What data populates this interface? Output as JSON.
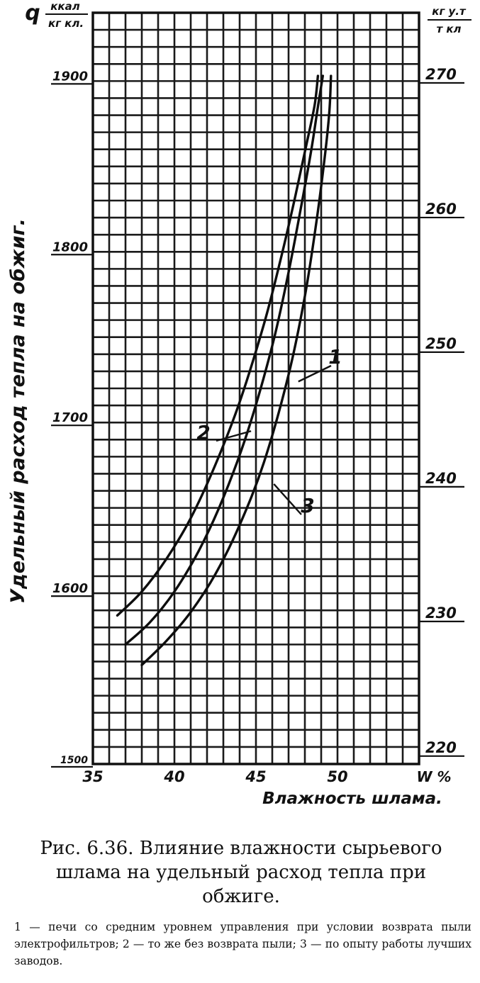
{
  "chart_data": {
    "type": "line",
    "ylabel": "Удельный расход тепла на обжиг.",
    "xlabel": "Влажность шлама.",
    "y_unit_left": {
      "symbol": "q",
      "numerator": "ккал",
      "denominator": "кг кл."
    },
    "y_unit_right": {
      "numerator": "кг у.т",
      "denominator": "т кл"
    },
    "x_unit": "W %",
    "xlim": [
      35,
      55
    ],
    "ylim_left": [
      1500,
      1940
    ],
    "ylim_right": [
      219.2,
      275.0
    ],
    "x_ticks": [
      35,
      40,
      45,
      50
    ],
    "y_ticks_left": [
      1500,
      1600,
      1700,
      1800,
      1900
    ],
    "y_ticks_right": [
      220,
      230,
      240,
      250,
      260,
      270
    ],
    "grid": true,
    "series": [
      {
        "name": "1",
        "x": [
          37.0,
          38.5,
          40.0,
          41.5,
          43.0,
          44.5,
          46.0,
          47.0,
          47.8,
          48.4,
          48.8,
          49.1
        ],
        "y": [
          1570,
          1583,
          1601,
          1625,
          1656,
          1695,
          1745,
          1788,
          1828,
          1860,
          1885,
          1903
        ]
      },
      {
        "name": "2",
        "x": [
          36.5,
          38.0,
          39.5,
          41.0,
          42.5,
          44.0,
          45.5,
          46.5,
          47.4,
          48.1,
          48.6,
          48.8
        ],
        "y": [
          1587,
          1601,
          1620,
          1644,
          1675,
          1712,
          1758,
          1795,
          1832,
          1863,
          1886,
          1903
        ]
      },
      {
        "name": "3",
        "x": [
          38.0,
          39.5,
          41.0,
          42.5,
          44.0,
          45.5,
          47.0,
          48.0,
          48.7,
          49.2,
          49.5,
          49.6
        ],
        "y": [
          1558,
          1572,
          1589,
          1611,
          1640,
          1677,
          1728,
          1774,
          1817,
          1854,
          1882,
          1903
        ]
      }
    ],
    "annotations": [
      "1",
      "2",
      "3"
    ]
  },
  "caption": {
    "title": "Рис. 6.36. Влияние влажности сырьевого шлама на удельный расход тепла при обжиге.",
    "body": "1 — печи со средним уровнем управления при условии возврата пыли электрофильтров; 2 — то же без возврата пыли; 3 — по опыту работы лучших заводов."
  }
}
